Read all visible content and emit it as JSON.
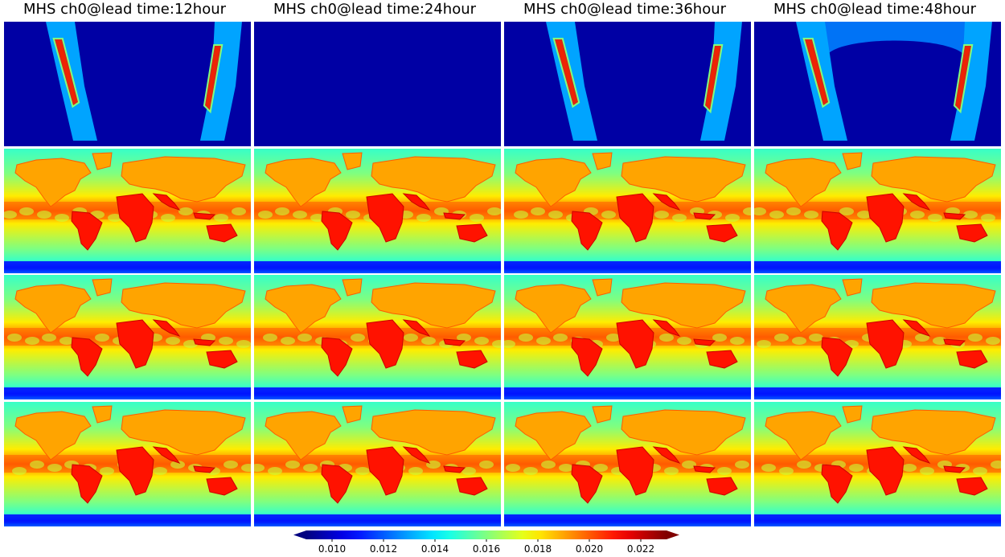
{
  "titles": [
    "MHS ch0@lead time:12hour",
    "MHS ch0@lead time:24hour",
    "MHS ch0@lead time:36hour",
    "MHS ch0@lead time:48hour"
  ],
  "chart_data": {
    "type": "heatmap",
    "title": "",
    "variable": "MHS ch0",
    "lead_times_hours": [
      12,
      24,
      36,
      48
    ],
    "rows": 4,
    "columns": 4,
    "row_contents": [
      "satellite swath coverage (high values along two curved swath bands, 0.010 background elsewhere; 24 hour panel uniformly at minimum)",
      "global field",
      "global field",
      "global field"
    ],
    "colormap": "jet",
    "extend": "both",
    "vmin": 0.009,
    "vmax": 0.023,
    "colorbar_ticks": [
      0.01,
      0.012,
      0.014,
      0.016,
      0.018,
      0.02,
      0.022
    ],
    "colorbar_tick_labels": [
      "0.010",
      "0.012",
      "0.014",
      "0.016",
      "0.018",
      "0.020",
      "0.022"
    ],
    "approx_values": {
      "land_tropics": 0.021,
      "land_high_latitude": 0.019,
      "tropical_ocean_band": 0.02,
      "midlatitude_ocean": 0.016,
      "antarctic_margin": 0.011,
      "coverage_background": 0.0095
    }
  }
}
